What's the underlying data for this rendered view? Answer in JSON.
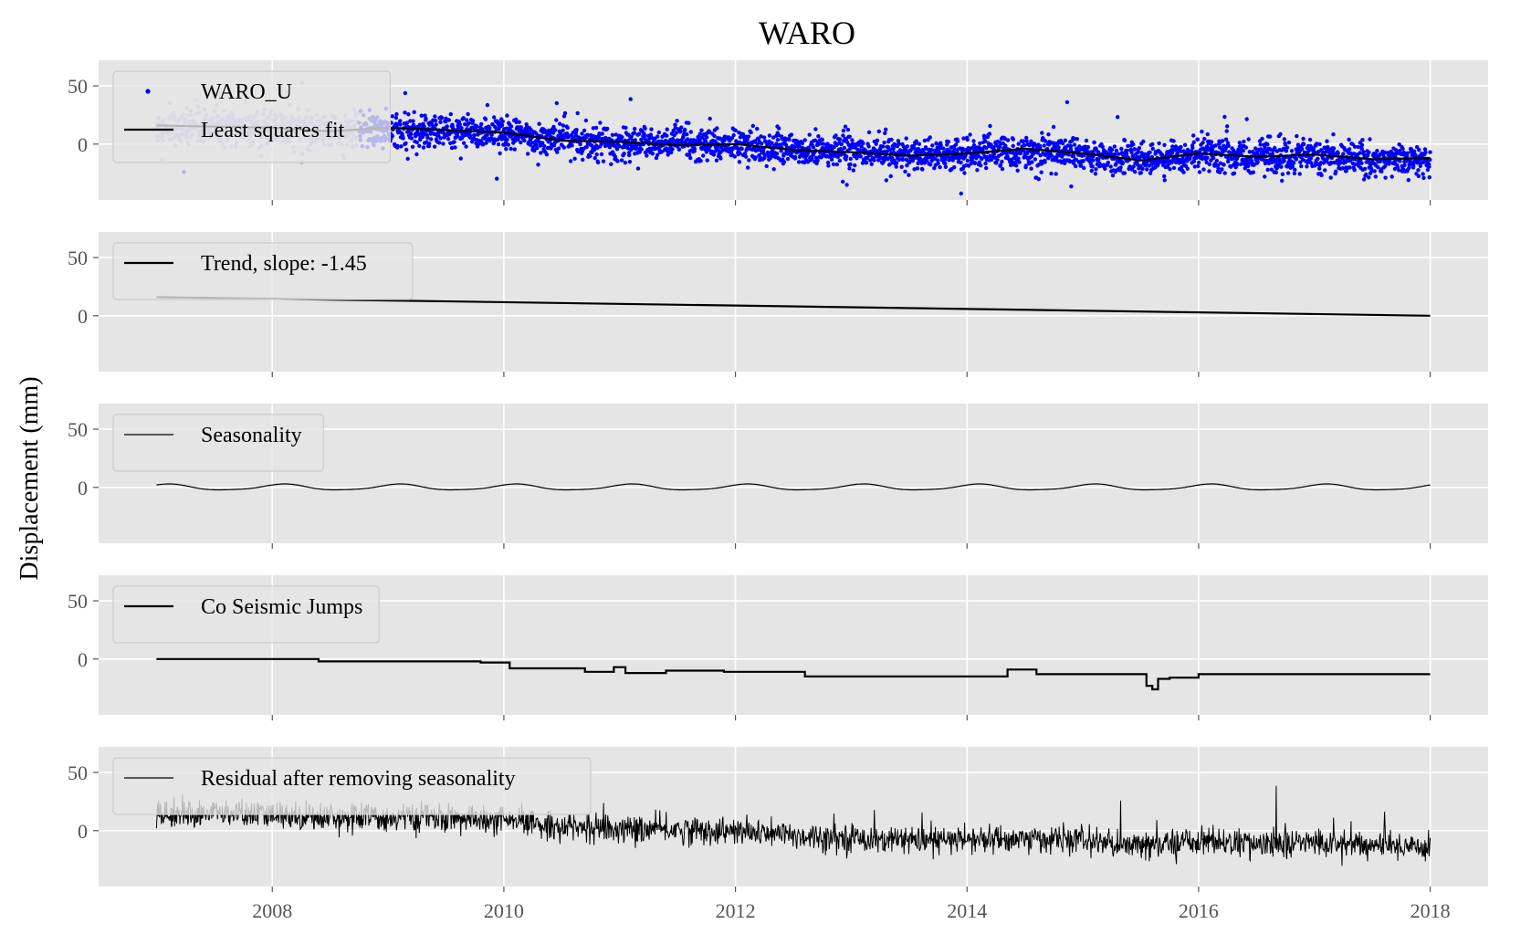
{
  "figure": {
    "title": "WARO",
    "ylabel": "Displacement (mm)"
  },
  "chart_data": [
    {
      "type": "scatter",
      "panel": "observations",
      "title": "WARO",
      "ylabel": "Displacement (mm)",
      "xlim": [
        2006.5,
        2018.5
      ],
      "ylim": [
        -48,
        72
      ],
      "x_ticks": [
        "2008",
        "2010",
        "2012",
        "2014",
        "2016",
        "2018"
      ],
      "y_ticks": [
        "0",
        "50"
      ],
      "grid": true,
      "legend": "top-left",
      "series": [
        {
          "name": "WARO_U",
          "style": "points",
          "color": "#0000ff",
          "faded_range": [
            2007.0,
            2008.75
          ],
          "faded_color": "#b0b0e8",
          "x": [
            2007.0,
            2007.5,
            2008.0,
            2008.5,
            2009.0,
            2009.5,
            2010.0,
            2010.5,
            2011.0,
            2011.5,
            2012.0,
            2012.5,
            2013.0,
            2013.5,
            2014.0,
            2014.5,
            2015.0,
            2015.5,
            2016.0,
            2016.5,
            2017.0,
            2017.5,
            2018.0
          ],
          "y": [
            14,
            15,
            13,
            12,
            11,
            11,
            8,
            4,
            1,
            1,
            -1,
            -4,
            -6,
            -9,
            -8,
            -7,
            -8,
            -14,
            -8,
            -12,
            -10,
            -13,
            -13
          ],
          "scatter_sd": 7
        },
        {
          "name": "Least squares fit",
          "style": "line",
          "color": "#000000",
          "x": [
            2007.0,
            2007.5,
            2008.0,
            2008.5,
            2009.0,
            2009.5,
            2010.0,
            2010.5,
            2011.0,
            2011.5,
            2012.0,
            2012.5,
            2013.0,
            2013.5,
            2014.0,
            2014.5,
            2015.0,
            2015.5,
            2016.0,
            2016.5,
            2017.0,
            2017.5,
            2018.0
          ],
          "y": [
            16,
            15,
            14,
            11,
            14,
            12,
            10,
            3,
            2,
            -1,
            0,
            -5,
            -7,
            -10,
            -8,
            -4,
            -8,
            -14,
            -8,
            -11,
            -9,
            -13,
            -12
          ]
        }
      ]
    },
    {
      "type": "line",
      "panel": "trend",
      "xlim": [
        2006.5,
        2018.5
      ],
      "ylim": [
        -48,
        72
      ],
      "x_ticks": [
        "2008",
        "2010",
        "2012",
        "2014",
        "2016",
        "2018"
      ],
      "y_ticks": [
        "0",
        "50"
      ],
      "grid": true,
      "legend": "top-left",
      "series": [
        {
          "name": "Trend, slope: -1.45",
          "color": "#000000",
          "x": [
            2007.0,
            2018.0
          ],
          "y": [
            16,
            0
          ]
        }
      ]
    },
    {
      "type": "line",
      "panel": "seasonality",
      "xlim": [
        2006.5,
        2018.5
      ],
      "ylim": [
        -48,
        72
      ],
      "x_ticks": [
        "2008",
        "2010",
        "2012",
        "2014",
        "2016",
        "2018"
      ],
      "y_ticks": [
        "0",
        "50"
      ],
      "grid": true,
      "legend": "top-left",
      "series": [
        {
          "name": "Seasonality",
          "color": "#000000",
          "amplitude": 2.5,
          "period_years": 1,
          "x": [
            2007.0,
            2007.25,
            2007.5,
            2007.75,
            2008.0,
            2008.25,
            2008.5,
            2008.75,
            2009.0,
            2009.25,
            2009.5,
            2009.75,
            2010.0,
            2010.25,
            2010.5,
            2010.75,
            2011.0,
            2011.25,
            2011.5,
            2011.75,
            2012.0,
            2012.25,
            2012.5,
            2012.75,
            2013.0,
            2013.25,
            2013.5,
            2013.75,
            2014.0,
            2014.25,
            2014.5,
            2014.75,
            2015.0,
            2015.25,
            2015.5,
            2015.75,
            2016.0,
            2016.25,
            2016.5,
            2016.75,
            2017.0,
            2017.25,
            2017.5,
            2017.75,
            2018.0
          ],
          "y": [
            1,
            2.5,
            -0.5,
            -2.5,
            1,
            2.5,
            -0.5,
            -2.5,
            1,
            2.5,
            -0.5,
            -2.5,
            1,
            2.5,
            -0.5,
            -2.5,
            1,
            2.5,
            -0.5,
            -2.5,
            1,
            2.5,
            -0.5,
            -2.5,
            1,
            2.5,
            -0.5,
            -2.5,
            1,
            2.5,
            -0.5,
            -2.5,
            1,
            2.5,
            -0.5,
            -2.5,
            1,
            2.5,
            -0.5,
            -2.5,
            1,
            2.5,
            -0.5,
            -2.5,
            1
          ]
        }
      ]
    },
    {
      "type": "line",
      "panel": "jumps",
      "xlim": [
        2006.5,
        2018.5
      ],
      "ylim": [
        -48,
        72
      ],
      "x_ticks": [
        "2008",
        "2010",
        "2012",
        "2014",
        "2016",
        "2018"
      ],
      "y_ticks": [
        "0",
        "50"
      ],
      "grid": true,
      "legend": "top-left",
      "series": [
        {
          "name": "Co Seismic Jumps",
          "color": "#000000",
          "step": true,
          "x": [
            2007.0,
            2008.4,
            2009.8,
            2010.05,
            2010.7,
            2010.95,
            2011.05,
            2011.4,
            2011.9,
            2012.6,
            2014.35,
            2014.6,
            2015.55,
            2015.6,
            2015.65,
            2015.75,
            2016.0,
            2018.0
          ],
          "y": [
            0,
            -2,
            -3,
            -8,
            -11,
            -7,
            -12,
            -10,
            -11,
            -15,
            -9,
            -13,
            -23,
            -26,
            -17,
            -16,
            -13,
            -13
          ]
        }
      ]
    },
    {
      "type": "line",
      "panel": "residual",
      "xlim": [
        2006.5,
        2018.5
      ],
      "ylim": [
        -48,
        72
      ],
      "x_ticks": [
        "2008",
        "2010",
        "2012",
        "2014",
        "2016",
        "2018"
      ],
      "y_ticks": [
        "0",
        "50"
      ],
      "grid": true,
      "legend": "top-left",
      "series": [
        {
          "name": "Residual after removing seasonality",
          "color": "#000000",
          "x": [
            2007.0,
            2007.5,
            2008.0,
            2008.5,
            2009.0,
            2009.5,
            2010.0,
            2010.5,
            2011.0,
            2011.5,
            2012.0,
            2012.5,
            2013.0,
            2013.5,
            2014.0,
            2014.5,
            2015.0,
            2015.5,
            2016.0,
            2016.5,
            2017.0,
            2017.5,
            2018.0
          ],
          "y": [
            14,
            15,
            13,
            12,
            11,
            11,
            8,
            4,
            1,
            1,
            -1,
            -4,
            -6,
            -9,
            -8,
            -7,
            -8,
            -14,
            -8,
            -12,
            -10,
            -13,
            -13
          ],
          "noise_sd": 6
        }
      ]
    }
  ]
}
